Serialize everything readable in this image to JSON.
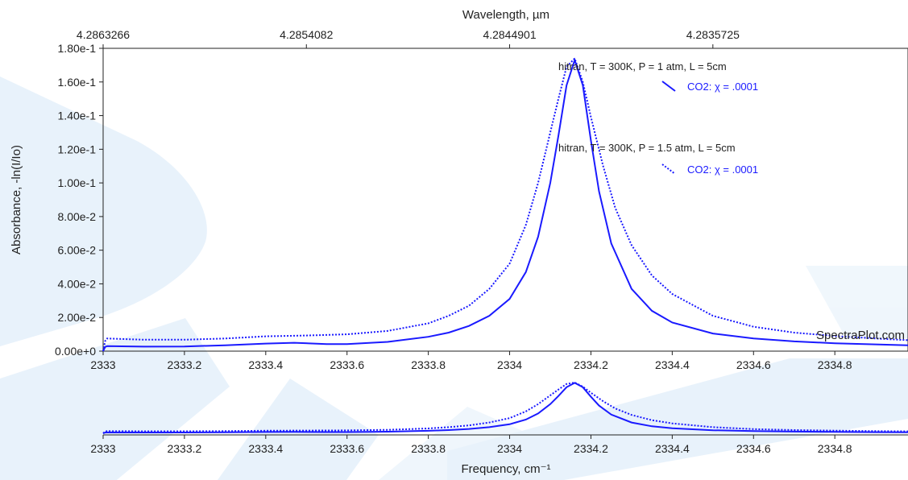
{
  "watermark": "SpectraPlot.com",
  "chart_data": {
    "type": "line",
    "xlabel": "Frequency, cm⁻¹",
    "ylabel": "Absorbance, -ln(I/Io)",
    "top_axis_label": "Wavelength, µm",
    "xlim": [
      2333,
      2334.98
    ],
    "ylim": [
      0,
      0.18
    ],
    "x_ticks": [
      "2333",
      "2333.2",
      "2333.4",
      "2333.6",
      "2333.8",
      "2334",
      "2334.2",
      "2334.4",
      "2334.6",
      "2334.8"
    ],
    "x_tick_values": [
      2333,
      2333.2,
      2333.4,
      2333.6,
      2333.8,
      2334,
      2334.2,
      2334.4,
      2334.6,
      2334.8
    ],
    "y_ticks": [
      "0.00e+0",
      "2.00e-2",
      "4.00e-2",
      "6.00e-2",
      "8.00e-2",
      "1.00e-1",
      "1.20e-1",
      "1.40e-1",
      "1.60e-1",
      "1.80e-1"
    ],
    "y_tick_values": [
      0,
      0.02,
      0.04,
      0.06,
      0.08,
      0.1,
      0.12,
      0.14,
      0.16,
      0.18
    ],
    "top_ticks": [
      {
        "label": "4.2863266",
        "x": 2333
      },
      {
        "label": "4.2854082",
        "x": 2333.5
      },
      {
        "label": "4.2844901",
        "x": 2334
      },
      {
        "label": "4.2835725",
        "x": 2334.5
      }
    ],
    "series": [
      {
        "header": "hitran, T = 300K, P = 1 atm, L = 5cm",
        "name": "CO2: χ = .0001",
        "color": "#1a1aff",
        "style": "solid",
        "x": [
          2333,
          2333.005,
          2333.01,
          2333.1,
          2333.2,
          2333.3,
          2333.4,
          2333.47,
          2333.55,
          2333.6,
          2333.7,
          2333.8,
          2333.85,
          2333.9,
          2333.95,
          2334.0,
          2334.04,
          2334.07,
          2334.1,
          2334.12,
          2334.14,
          2334.16,
          2334.18,
          2334.2,
          2334.22,
          2334.25,
          2334.3,
          2334.35,
          2334.4,
          2334.5,
          2334.6,
          2334.7,
          2334.8,
          2334.9,
          2334.98
        ],
        "values": [
          0.0,
          0.0025,
          0.003,
          0.0027,
          0.0028,
          0.0035,
          0.0045,
          0.005,
          0.0042,
          0.0042,
          0.0055,
          0.0085,
          0.011,
          0.015,
          0.021,
          0.031,
          0.047,
          0.068,
          0.1,
          0.128,
          0.158,
          0.173,
          0.158,
          0.125,
          0.095,
          0.064,
          0.037,
          0.024,
          0.017,
          0.0105,
          0.0075,
          0.0058,
          0.0047,
          0.004,
          0.0035
        ]
      },
      {
        "header": "hitran, T = 300K, P = 1.5 atm, L = 5cm",
        "name": "CO2: χ = .0001",
        "color": "#1a1aff",
        "style": "dotted",
        "x": [
          2333,
          2333.005,
          2333.01,
          2333.1,
          2333.2,
          2333.3,
          2333.4,
          2333.5,
          2333.6,
          2333.7,
          2333.8,
          2333.85,
          2333.9,
          2333.95,
          2334.0,
          2334.04,
          2334.07,
          2334.1,
          2334.12,
          2334.14,
          2334.16,
          2334.18,
          2334.2,
          2334.23,
          2334.26,
          2334.3,
          2334.35,
          2334.4,
          2334.5,
          2334.6,
          2334.7,
          2334.8,
          2334.9,
          2334.98
        ],
        "values": [
          0.0,
          0.006,
          0.0075,
          0.0068,
          0.0068,
          0.0075,
          0.0088,
          0.0093,
          0.01,
          0.012,
          0.0165,
          0.021,
          0.027,
          0.037,
          0.052,
          0.075,
          0.1,
          0.13,
          0.15,
          0.169,
          0.174,
          0.16,
          0.139,
          0.11,
          0.085,
          0.063,
          0.045,
          0.034,
          0.021,
          0.0145,
          0.011,
          0.009,
          0.0075,
          0.0065
        ]
      }
    ],
    "overview": {
      "x_ticks": [
        "2333",
        "2333.2",
        "2333.4",
        "2333.6",
        "2333.8",
        "2334",
        "2334.2",
        "2334.4",
        "2334.6",
        "2334.8"
      ]
    }
  }
}
